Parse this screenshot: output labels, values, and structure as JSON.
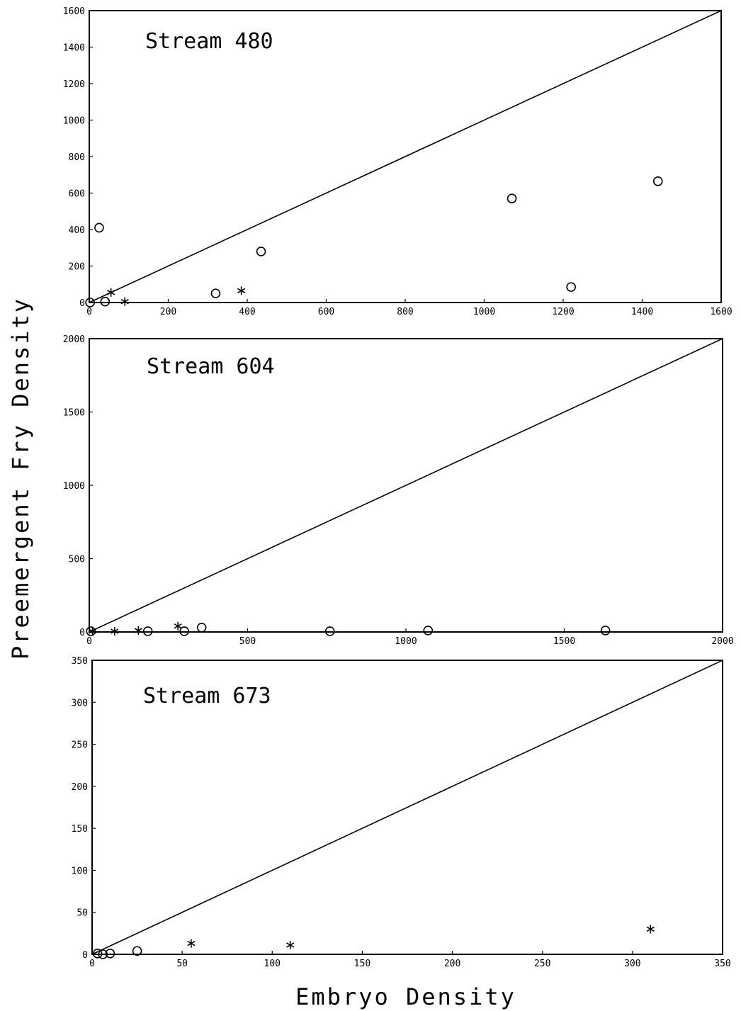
{
  "figure": {
    "ylabel": "Preemergent Fry Density",
    "xlabel": "Embryo Density"
  },
  "chart_data": [
    {
      "type": "scatter",
      "title": "Stream 480",
      "xlim": [
        0,
        1600
      ],
      "ylim": [
        0,
        1600
      ],
      "xticks": [
        0,
        200,
        400,
        600,
        800,
        1000,
        1200,
        1400,
        1600
      ],
      "yticks": [
        0,
        200,
        400,
        600,
        800,
        1000,
        1200,
        1400,
        1600
      ],
      "reference_line": "1:1",
      "series": [
        {
          "marker": "circle",
          "points": [
            [
              2,
              0
            ],
            [
              25,
              410
            ],
            [
              40,
              5
            ],
            [
              320,
              50
            ],
            [
              435,
              280
            ],
            [
              1070,
              570
            ],
            [
              1220,
              85
            ],
            [
              1440,
              665
            ]
          ]
        },
        {
          "marker": "star",
          "points": [
            [
              55,
              55
            ],
            [
              90,
              5
            ],
            [
              385,
              65
            ]
          ]
        }
      ]
    },
    {
      "type": "scatter",
      "title": "Stream 604",
      "xlim": [
        0,
        2000
      ],
      "ylim": [
        0,
        2000
      ],
      "xticks": [
        0,
        500,
        1000,
        1500,
        2000
      ],
      "yticks": [
        0,
        500,
        1000,
        1500,
        2000
      ],
      "reference_line": "1:1",
      "series": [
        {
          "marker": "circle",
          "points": [
            [
              5,
              5
            ],
            [
              185,
              5
            ],
            [
              300,
              5
            ],
            [
              355,
              30
            ],
            [
              760,
              5
            ],
            [
              1070,
              10
            ],
            [
              1630,
              10
            ]
          ]
        },
        {
          "marker": "star",
          "points": [
            [
              10,
              5
            ],
            [
              80,
              5
            ],
            [
              155,
              10
            ],
            [
              280,
              40
            ]
          ]
        }
      ]
    },
    {
      "type": "scatter",
      "title": "Stream 673",
      "xlim": [
        0,
        350
      ],
      "ylim": [
        0,
        350
      ],
      "xticks": [
        0,
        50,
        100,
        150,
        200,
        250,
        300,
        350
      ],
      "yticks": [
        0,
        50,
        100,
        150,
        200,
        250,
        300,
        350
      ],
      "reference_line": "1:1",
      "series": [
        {
          "marker": "circle",
          "points": [
            [
              3,
              1
            ],
            [
              6,
              0
            ],
            [
              10,
              1
            ],
            [
              25,
              4
            ]
          ]
        },
        {
          "marker": "star",
          "points": [
            [
              55,
              13
            ],
            [
              110,
              11
            ],
            [
              310,
              30
            ]
          ]
        }
      ]
    }
  ]
}
